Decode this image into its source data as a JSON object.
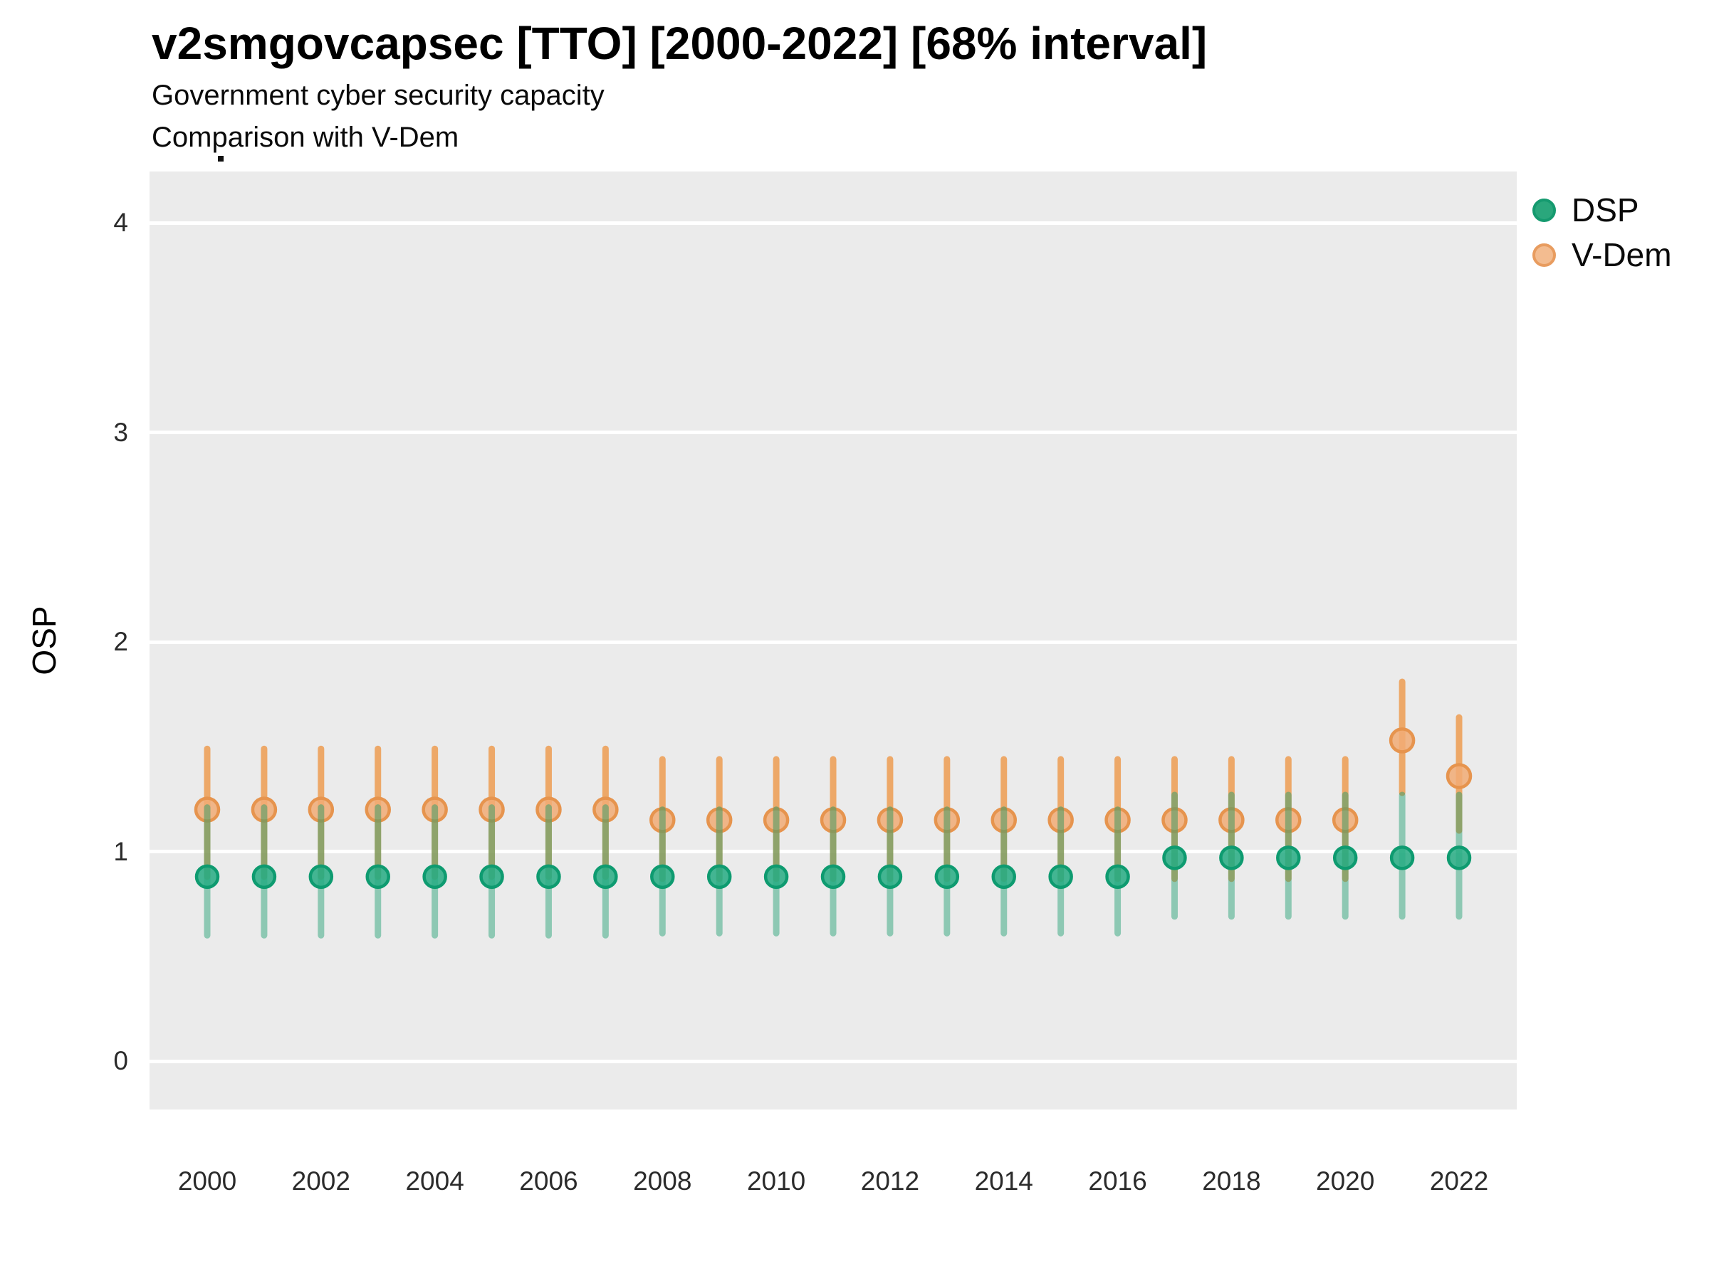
{
  "header": {
    "title": "v2smgovcapsec [TTO] [2000-2022] [68% interval]",
    "subtitle1": "Government cyber security capacity",
    "subtitle2": "Comparison with V-Dem"
  },
  "chart_data": {
    "type": "scatter",
    "title": "v2smgovcapsec [TTO] [2000-2022] [68% interval]",
    "subtitle": [
      "Government cyber security capacity",
      "Comparison with V-Dem"
    ],
    "interval": "68% interval",
    "ylabel": "OSP",
    "xlabel": "",
    "ylim": [
      -0.23,
      4.24
    ],
    "grid": "major horizontal white lines on gray panel",
    "legend_position": "right-top",
    "panel_background": "#EBEBEB",
    "x": [
      2000,
      2001,
      2002,
      2003,
      2004,
      2005,
      2006,
      2007,
      2008,
      2009,
      2010,
      2011,
      2012,
      2013,
      2014,
      2015,
      2016,
      2017,
      2018,
      2019,
      2020,
      2021,
      2022
    ],
    "x_ticks": [
      "2000",
      "2002",
      "2004",
      "2006",
      "2008",
      "2010",
      "2012",
      "2014",
      "2016",
      "2018",
      "2020",
      "2022"
    ],
    "y_ticks": [
      "0",
      "1",
      "2",
      "3",
      "4"
    ],
    "series": [
      {
        "name": "DSP",
        "values": [
          0.88,
          0.88,
          0.88,
          0.88,
          0.88,
          0.88,
          0.88,
          0.88,
          0.88,
          0.88,
          0.88,
          0.88,
          0.88,
          0.88,
          0.88,
          0.88,
          0.88,
          0.97,
          0.97,
          0.97,
          0.97,
          0.97,
          0.97
        ],
        "lo": [
          0.6,
          0.6,
          0.6,
          0.6,
          0.6,
          0.6,
          0.6,
          0.6,
          0.61,
          0.61,
          0.61,
          0.61,
          0.61,
          0.61,
          0.61,
          0.61,
          0.61,
          0.69,
          0.69,
          0.69,
          0.69,
          0.69,
          0.69
        ],
        "hi": [
          1.21,
          1.21,
          1.21,
          1.21,
          1.21,
          1.21,
          1.21,
          1.21,
          1.2,
          1.2,
          1.2,
          1.2,
          1.2,
          1.2,
          1.2,
          1.2,
          1.2,
          1.27,
          1.27,
          1.27,
          1.27,
          1.27,
          1.27
        ],
        "color": "#26AB83",
        "point_fill": "#26AB83",
        "point_stroke": "#0E9B70",
        "bar_color": "rgba(26,158,110,0.45)",
        "legend_fill": "#2AA77C",
        "legend_stroke": "#159A6F",
        "point_radius": 15
      },
      {
        "name": "V-Dem",
        "values": [
          1.2,
          1.2,
          1.2,
          1.2,
          1.2,
          1.2,
          1.2,
          1.2,
          1.15,
          1.15,
          1.15,
          1.15,
          1.15,
          1.15,
          1.15,
          1.15,
          1.15,
          1.15,
          1.15,
          1.15,
          1.15,
          1.53,
          1.36
        ],
        "lo": [
          0.88,
          0.88,
          0.88,
          0.88,
          0.88,
          0.88,
          0.88,
          0.88,
          0.87,
          0.87,
          0.87,
          0.87,
          0.87,
          0.87,
          0.87,
          0.87,
          0.87,
          0.87,
          0.87,
          0.87,
          0.87,
          1.28,
          1.1
        ],
        "hi": [
          1.49,
          1.49,
          1.49,
          1.49,
          1.49,
          1.49,
          1.49,
          1.49,
          1.44,
          1.44,
          1.44,
          1.44,
          1.44,
          1.44,
          1.44,
          1.44,
          1.44,
          1.44,
          1.44,
          1.44,
          1.44,
          1.81,
          1.64
        ],
        "color": "#F1AC76",
        "point_fill": "#F1AC76",
        "point_stroke": "#E6944E",
        "bar_color": "rgba(238,139,49,0.7)",
        "legend_fill": "#F3BC90",
        "legend_stroke": "#E89C5F",
        "point_radius": 16
      }
    ]
  }
}
